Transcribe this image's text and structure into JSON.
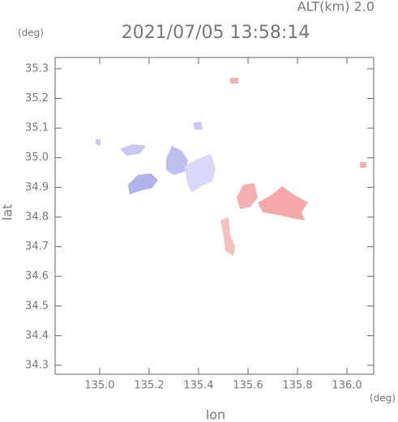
{
  "chart_data": {
    "type": "map",
    "title": "2021/07/05 13:58:14",
    "subtitle": "ALT(km) 2.0",
    "x_label": "lon",
    "y_label": "lat",
    "x_unit": "(deg)",
    "y_unit": "(deg)",
    "xlim": [
      134.82,
      136.108
    ],
    "ylim": [
      34.27,
      35.338
    ],
    "xticks": [
      {
        "value": 135,
        "label": "135.0"
      },
      135.2,
      135.4,
      135.6,
      135.8,
      {
        "value": 136,
        "label": "136.0"
      }
    ],
    "yticks": [
      34.3,
      34.4,
      34.5,
      34.6,
      34.7,
      34.8,
      34.9,
      {
        "value": 35,
        "label": "35.0"
      },
      35.1,
      35.2,
      35.3
    ]
  }
}
